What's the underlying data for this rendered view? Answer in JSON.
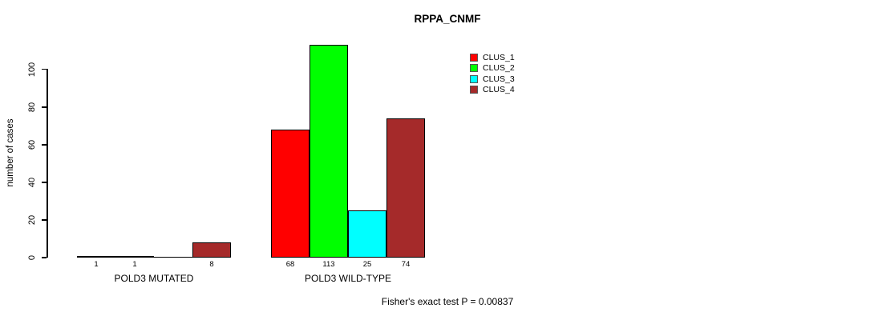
{
  "chart_data": {
    "type": "bar",
    "title": "RPPA_CNMF",
    "ylabel": "number of cases",
    "xlabel": "",
    "ylim": [
      0,
      113
    ],
    "yticks": [
      0,
      20,
      40,
      60,
      80,
      100
    ],
    "grid": false,
    "legend_position": "top-right",
    "categories": [
      "POLD3 MUTATED",
      "POLD3 WILD-TYPE"
    ],
    "series": [
      {
        "name": "CLUS_1",
        "color": "#ff0000",
        "values": [
          1,
          68
        ]
      },
      {
        "name": "CLUS_2",
        "color": "#00ff00",
        "values": [
          1,
          113
        ]
      },
      {
        "name": "CLUS_3",
        "color": "#00ffff",
        "values": [
          0,
          25
        ]
      },
      {
        "name": "CLUS_4",
        "color": "#a52a2a",
        "values": [
          8,
          74
        ]
      }
    ],
    "bar_value_labels": [
      [
        "1",
        "1",
        "",
        "8"
      ],
      [
        "68",
        "113",
        "25",
        "74"
      ]
    ],
    "annotation": "Fisher's exact test P = 0.00837"
  }
}
